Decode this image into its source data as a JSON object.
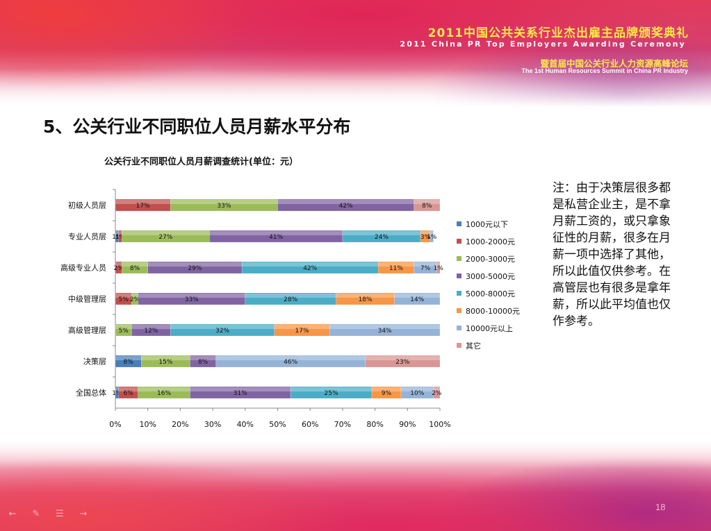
{
  "header": {
    "event_title": "2011中国公共关系行业杰出雇主品牌颁奖典礼",
    "event_subtitle": "2011 China PR Top Employers Awarding Ceremony",
    "summit_title": "暨首届中国公关行业人力资源高峰论坛",
    "summit_subtitle": "The 1st Human Resources Summit in China PR Industry"
  },
  "slide": {
    "title": "5、公关行业不同职位人员月薪水平分布",
    "note": "注：由于决策层很多都是私营企业主，是不拿月薪工资的，或只拿象征性的月薪，很多在月薪一项中选择了其他，所以此值仅供参考。在高管层也有很多是拿年薪，所以此平均值也仅作参考。",
    "page_number": "18"
  },
  "nav": {
    "icons": [
      "arrow-left-icon",
      "pen-icon",
      "menu-icon",
      "arrow-right-icon"
    ]
  },
  "chart_data": {
    "type": "bar",
    "orientation": "horizontal",
    "stacked": true,
    "percent_stacked": true,
    "title": "公关行业不同职位人员月薪调查统计(单位：元）",
    "categories": [
      "初级人员层",
      "专业人员层",
      "高级专业人员",
      "中级管理层",
      "高级管理层",
      "决策层",
      "全国总体"
    ],
    "x_ticks": [
      "0%",
      "10%",
      "20%",
      "30%",
      "40%",
      "50%",
      "60%",
      "70%",
      "80%",
      "90%",
      "100%"
    ],
    "xlim": [
      0,
      100
    ],
    "grid": false,
    "legend_position": "right",
    "series": [
      {
        "name": "1000元以下",
        "color": "#4a7ebb",
        "values": [
          0,
          1,
          0,
          0,
          0,
          8,
          1
        ],
        "labels": [
          "",
          "1%",
          "",
          "",
          "",
          "8%",
          "1%"
        ]
      },
      {
        "name": "1000-2000元",
        "color": "#c0504d",
        "values": [
          17,
          1,
          2,
          5,
          0,
          0,
          6
        ],
        "labels": [
          "17%",
          "1%",
          "2%",
          "5%",
          "",
          "",
          "6%"
        ]
      },
      {
        "name": "2000-3000元",
        "color": "#9bbb59",
        "values": [
          33,
          27,
          8,
          2,
          5,
          15,
          16
        ],
        "labels": [
          "33%",
          "27%",
          "8%",
          "2%",
          "5%",
          "15%",
          "16%"
        ]
      },
      {
        "name": "3000-5000元",
        "color": "#8064a2",
        "values": [
          42,
          41,
          29,
          33,
          12,
          8,
          31
        ],
        "labels": [
          "42%",
          "41%",
          "29%",
          "33%",
          "12%",
          "8%",
          "31%"
        ]
      },
      {
        "name": "5000-8000元",
        "color": "#4bacc6",
        "values": [
          0,
          24,
          42,
          28,
          32,
          0,
          25
        ],
        "labels": [
          "",
          "24%",
          "42%",
          "28%",
          "32%",
          "",
          "25%"
        ]
      },
      {
        "name": "8000-10000元",
        "color": "#f79646",
        "values": [
          0,
          3,
          11,
          18,
          17,
          0,
          9
        ],
        "labels": [
          "",
          "3%",
          "11%",
          "18%",
          "17%",
          "",
          "9%"
        ]
      },
      {
        "name": "10000元以上",
        "color": "#95b3d7",
        "values": [
          0,
          1,
          7,
          14,
          34,
          46,
          10
        ],
        "labels": [
          "",
          "1%",
          "7%",
          "14%",
          "34%",
          "46%",
          "10%"
        ]
      },
      {
        "name": "其它",
        "color": "#d99694",
        "values": [
          8,
          0,
          1,
          0,
          0,
          23,
          2
        ],
        "labels": [
          "8%",
          "",
          "1%",
          "",
          "",
          "23%",
          "2%"
        ]
      }
    ]
  }
}
